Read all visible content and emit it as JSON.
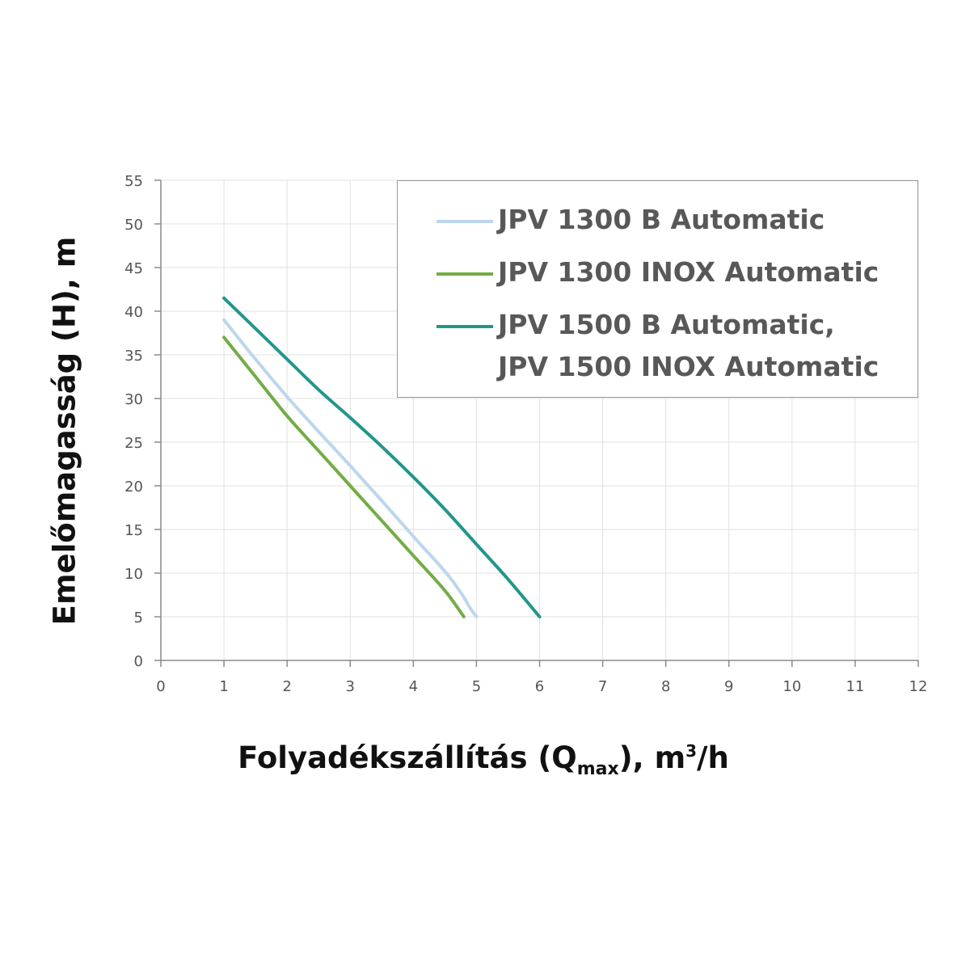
{
  "chart_data": {
    "type": "line",
    "xlabel_prefix": "Folyadékszállítás (Q",
    "xlabel_sub": "max",
    "xlabel_mid": "), m",
    "xlabel_sup": "3",
    "xlabel_suffix": "/h",
    "ylabel": "Emelőmagasság (H), m",
    "xlim": [
      0,
      12
    ],
    "ylim": [
      0,
      55
    ],
    "xticks": [
      0,
      1,
      2,
      3,
      4,
      5,
      6,
      7,
      8,
      9,
      10,
      11,
      12
    ],
    "yticks": [
      0,
      5,
      10,
      15,
      20,
      25,
      30,
      35,
      40,
      45,
      50,
      55
    ],
    "grid": true,
    "legend_position": "top-right",
    "series": [
      {
        "name": "JPV 1300 B Automatic",
        "color": "#bcd7ec",
        "x": [
          1,
          1.5,
          2,
          2.5,
          3,
          3.5,
          4,
          4.5,
          4.75,
          4.9,
          5
        ],
        "y": [
          39,
          34.5,
          30.2,
          26.2,
          22.3,
          18.3,
          14.2,
          10.2,
          7.8,
          6,
          5
        ]
      },
      {
        "name": "JPV 1300 INOX Automatic",
        "color": "#72ad45",
        "x": [
          1,
          1.5,
          2,
          2.5,
          3,
          3.5,
          4,
          4.5,
          4.8
        ],
        "y": [
          37,
          32.5,
          28,
          24,
          20,
          16,
          12,
          8,
          5
        ]
      },
      {
        "name": "JPV 1500 B Automatic,\nJPV 1500 INOX Automatic",
        "color": "#23968a",
        "x": [
          1,
          1.5,
          2,
          2.5,
          3,
          3.5,
          4,
          4.5,
          5,
          5.5,
          6
        ],
        "y": [
          41.5,
          38,
          34.5,
          31,
          27.8,
          24.5,
          21,
          17.3,
          13.3,
          9.3,
          5
        ]
      }
    ]
  }
}
